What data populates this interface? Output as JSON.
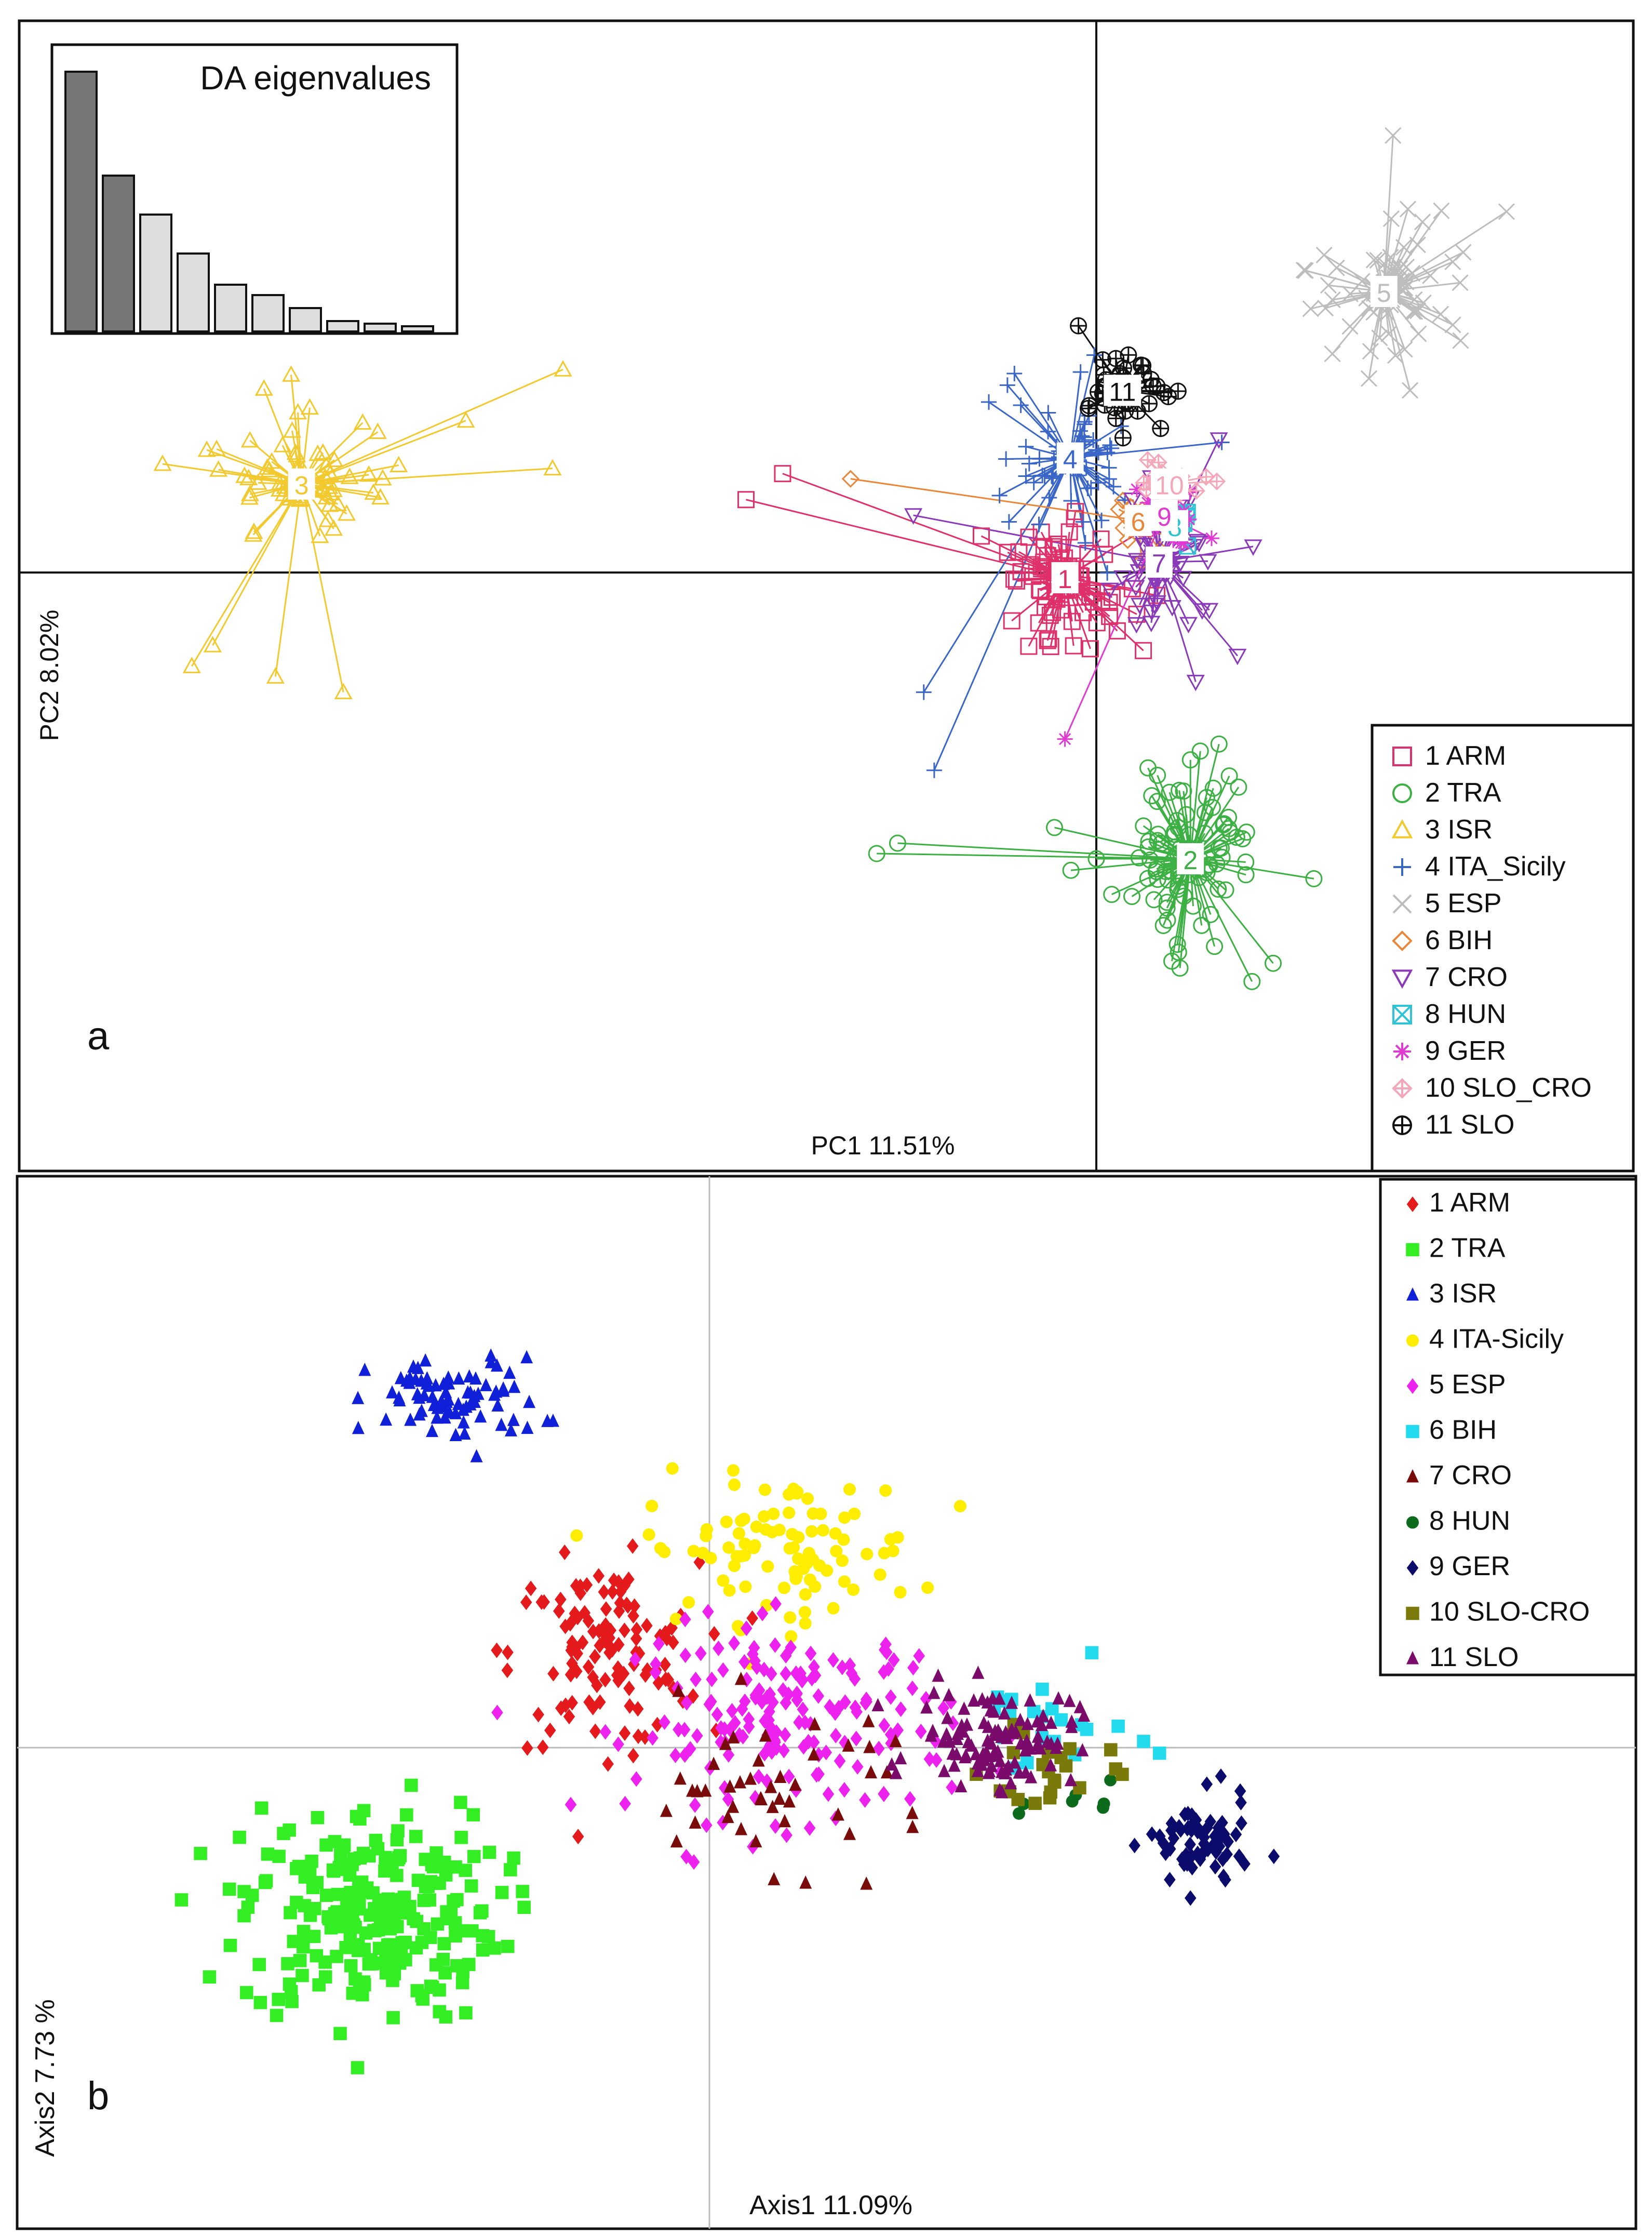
{
  "chart_data": [
    {
      "panel": "a",
      "type": "scatter",
      "description_free": true,
      "xlabel": "PC1 11.51%",
      "ylabel": "PC2 8.02%",
      "xlim": [
        -10,
        10
      ],
      "ylim": [
        -10,
        10
      ],
      "axes_cross_at": [
        0,
        0
      ],
      "inset": {
        "type": "bar",
        "title": "DA eigenvalues",
        "values": [
          100,
          60,
          45,
          30,
          18,
          14,
          9,
          4,
          3,
          2
        ],
        "retained": 2
      },
      "legend": "bottom-right",
      "groups": [
        {
          "id": "1",
          "label": "1 ARM",
          "marker": "square-open",
          "color": "#e0306a",
          "centroid": [
            -0.6,
            -0.1
          ],
          "spread": [
            0.9,
            0.9
          ],
          "n": 90,
          "outliers": [
            [
              -6.0,
              1.9
            ],
            [
              -6.7,
              1.4
            ],
            [
              -2.2,
              0.7
            ],
            [
              -1.0,
              0.5
            ],
            [
              0.9,
              -1.5
            ]
          ]
        },
        {
          "id": "2",
          "label": "2 TRA",
          "marker": "circle-open",
          "color": "#3cb043",
          "centroid": [
            1.8,
            -5.5
          ],
          "spread": [
            0.9,
            1.2
          ],
          "n": 110,
          "outliers": [
            [
              -3.8,
              -5.2
            ],
            [
              -4.2,
              -5.4
            ],
            [
              0.0,
              -5.5
            ],
            [
              -0.8,
              -4.9
            ],
            [
              1.6,
              -7.6
            ],
            [
              1.8,
              -3.6
            ]
          ]
        },
        {
          "id": "3",
          "label": "3 ISR",
          "marker": "triangle-open",
          "color": "#f2c92e",
          "centroid": [
            -15.2,
            1.7
          ],
          "spread": [
            0.9,
            0.8
          ],
          "n": 80,
          "outliers": [
            [
              -10.2,
              3.9
            ],
            [
              -10.4,
              2.0
            ],
            [
              -17.3,
              -1.8
            ],
            [
              -16.9,
              -1.4
            ],
            [
              -14.4,
              -2.3
            ],
            [
              -15.7,
              -2.0
            ],
            [
              -15.4,
              3.8
            ]
          ]
        },
        {
          "id": "4",
          "label": "4 ITA_Sicily",
          "marker": "plus",
          "color": "#3a66c8",
          "centroid": [
            -0.5,
            2.2
          ],
          "spread": [
            0.9,
            1.0
          ],
          "n": 70,
          "outliers": [
            [
              -3.3,
              -2.3
            ],
            [
              -3.1,
              -3.8
            ],
            [
              2.4,
              2.5
            ],
            [
              -1.7,
              3.6
            ],
            [
              0.1,
              1.0
            ]
          ]
        },
        {
          "id": "5",
          "label": "5 ESP",
          "marker": "x",
          "color": "#bdbdbd",
          "centroid": [
            5.5,
            5.4
          ],
          "spread": [
            0.8,
            0.9
          ],
          "n": 80,
          "outliers": [
            [
              4.0,
              5.8
            ],
            [
              6.0,
              3.5
            ]
          ]
        },
        {
          "id": "6",
          "label": "6 BIH",
          "marker": "diamond-open",
          "color": "#e8873a",
          "centroid": [
            0.8,
            1.0
          ],
          "spread": [
            0.4,
            0.4
          ],
          "n": 18,
          "outliers": [
            [
              -4.7,
              1.8
            ]
          ]
        },
        {
          "id": "7",
          "label": "7 CRO",
          "marker": "triangle-down-open",
          "color": "#8a3ab9",
          "centroid": [
            1.2,
            0.2
          ],
          "spread": [
            0.8,
            0.8
          ],
          "n": 65,
          "outliers": [
            [
              2.7,
              -1.6
            ],
            [
              -3.5,
              1.1
            ],
            [
              3.0,
              0.5
            ],
            [
              1.9,
              -2.1
            ]
          ]
        },
        {
          "id": "8",
          "label": "8 HUN",
          "marker": "square-x",
          "color": "#2ec4d6",
          "centroid": [
            1.5,
            0.9
          ],
          "spread": [
            0.3,
            0.3
          ],
          "n": 14,
          "outliers": []
        },
        {
          "id": "9",
          "label": " 9 GER",
          "marker": "asterisk",
          "color": "#e03ad3",
          "centroid": [
            1.3,
            1.1
          ],
          "spread": [
            0.5,
            0.4
          ],
          "n": 40,
          "outliers": [
            [
              -0.6,
              -3.2
            ]
          ]
        },
        {
          "id": "10",
          "label": "10 SLO_CRO",
          "marker": "diamond-plus",
          "color": "#f4a7b9",
          "centroid": [
            1.4,
            1.7
          ],
          "spread": [
            0.4,
            0.3
          ],
          "n": 30,
          "outliers": []
        },
        {
          "id": "11",
          "label": "11 SLO",
          "marker": "circle-plus",
          "color": "#111111",
          "centroid": [
            0.5,
            3.5
          ],
          "spread": [
            0.6,
            0.5
          ],
          "n": 55,
          "outliers": []
        }
      ]
    },
    {
      "panel": "b",
      "type": "scatter",
      "xlabel": "Axis1  11.09%",
      "ylabel": "Axis2  7.73 %",
      "xlim": [
        -10,
        10
      ],
      "ylim": [
        -10,
        10
      ],
      "axes_cross_at": [
        0,
        0
      ],
      "legend": "top-right",
      "groups": [
        {
          "id": "1",
          "label": "1 ARM",
          "marker": "diamond",
          "color": "#e41a1c",
          "centroid": [
            -1.6,
            1.7
          ],
          "spread": [
            1.3,
            1.5
          ],
          "n": 120
        },
        {
          "id": "2",
          "label": "2 TRA",
          "marker": "square",
          "color": "#33ee22",
          "centroid": [
            -5.2,
            -3.0
          ],
          "spread": [
            1.8,
            1.8
          ],
          "n": 240
        },
        {
          "id": "3",
          "label": "3 ISR",
          "marker": "triangle",
          "color": "#1020d8",
          "centroid": [
            -3.9,
            6.3
          ],
          "spread": [
            1.2,
            0.7
          ],
          "n": 80
        },
        {
          "id": "4",
          "label": "4 ITA-Sicily",
          "marker": "circle",
          "color": "#ffee00",
          "centroid": [
            1.1,
            3.6
          ],
          "spread": [
            1.9,
            1.2
          ],
          "n": 95
        },
        {
          "id": "5",
          "label": "5 ESP",
          "marker": "diamond",
          "color": "#ee22ee",
          "centroid": [
            1.3,
            0.5
          ],
          "spread": [
            2.2,
            1.6
          ],
          "n": 180
        },
        {
          "id": "6",
          "label": "6 BIH",
          "marker": "square",
          "color": "#22dbee",
          "centroid": [
            5.1,
            0.3
          ],
          "spread": [
            1.2,
            1.0
          ],
          "n": 22
        },
        {
          "id": "7",
          "label": "7 CRO",
          "marker": "triangle",
          "color": "#7a0b0b",
          "centroid": [
            1.0,
            -0.7
          ],
          "spread": [
            2.3,
            1.3
          ],
          "n": 45
        },
        {
          "id": "8",
          "label": "8 HUN",
          "marker": "circle",
          "color": "#0b6b1a",
          "centroid": [
            5.9,
            -1.0
          ],
          "spread": [
            0.8,
            0.6
          ],
          "n": 7
        },
        {
          "id": "9",
          "label": "9 GER",
          "marker": "diamond",
          "color": "#0b0b6b",
          "centroid": [
            7.5,
            -1.8
          ],
          "spread": [
            0.7,
            0.8
          ],
          "n": 70
        },
        {
          "id": "10",
          "label": "10 SLO-CRO",
          "marker": "square",
          "color": "#7a7a0b",
          "centroid": [
            5.2,
            -0.4
          ],
          "spread": [
            0.9,
            0.8
          ],
          "n": 22
        },
        {
          "id": "11",
          "label": "11 SLO",
          "marker": "triangle",
          "color": "#7a0b6b",
          "centroid": [
            4.4,
            0.2
          ],
          "spread": [
            1.1,
            0.8
          ],
          "n": 110
        }
      ]
    }
  ],
  "panel_letters": {
    "a": "a",
    "b": "b"
  }
}
